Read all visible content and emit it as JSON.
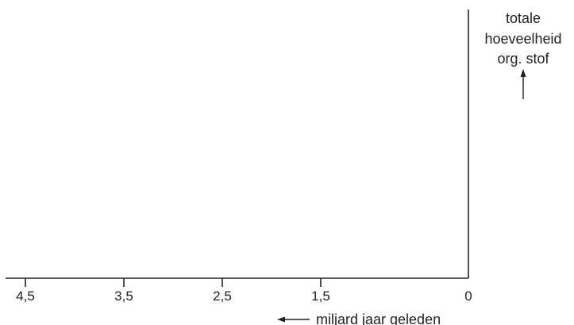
{
  "chart_data": {
    "type": "line",
    "x_ticks": [
      4.5,
      3.5,
      2.5,
      1.5,
      0
    ],
    "x_tick_labels": [
      "4,5",
      "3,5",
      "2,5",
      "1,5",
      "0"
    ],
    "xlim": [
      4.5,
      0
    ],
    "xlabel": "miljard jaar geleden",
    "ylabel": [
      "totale",
      "hoeveelheid",
      "org. stof"
    ],
    "series": [],
    "grid": false,
    "colors": {
      "axis": "#222222",
      "text": "#222222"
    }
  }
}
